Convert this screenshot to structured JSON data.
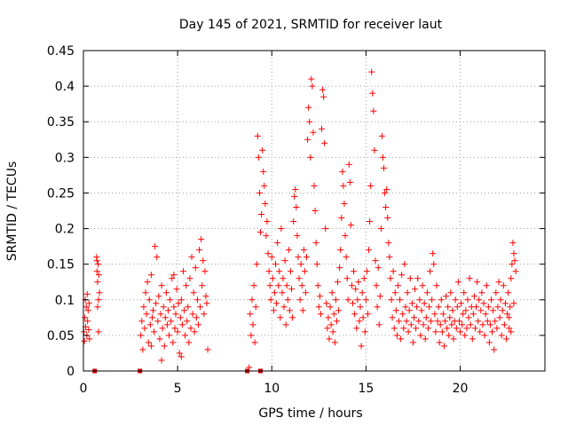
{
  "chart_data": {
    "type": "scatter",
    "title": "Day 145 of 2021, SRMTID for receiver laut",
    "xlabel": "GPS time / hours",
    "ylabel": "SRMTID / TECUs",
    "xlim": [
      0,
      24.5
    ],
    "ylim": [
      0,
      0.45
    ],
    "xticks": [
      0,
      5,
      10,
      15,
      20
    ],
    "yticks": [
      0,
      0.05,
      0.1,
      0.15,
      0.2,
      0.25,
      0.3,
      0.35,
      0.4,
      0.45
    ],
    "xtick_labels": [
      "0",
      "5",
      "10",
      "15",
      "20"
    ],
    "ytick_labels": [
      "0",
      "0.05",
      "0.1",
      "0.15",
      "0.2",
      "0.25",
      "0.3",
      "0.35",
      "0.4",
      "0.45"
    ],
    "grid": true,
    "marker": "+",
    "series_color": "#ff0000",
    "zero_markers_x": [
      0.6,
      3.0,
      8.7,
      9.4
    ],
    "data": [
      [
        0.02,
        0.055
      ],
      [
        0.05,
        0.042
      ],
      [
        0.08,
        0.075
      ],
      [
        0.1,
        0.1
      ],
      [
        0.12,
        0.062
      ],
      [
        0.15,
        0.09
      ],
      [
        0.18,
        0.05
      ],
      [
        0.2,
        0.108
      ],
      [
        0.22,
        0.07
      ],
      [
        0.25,
        0.085
      ],
      [
        0.28,
        0.058
      ],
      [
        0.3,
        0.095
      ],
      [
        0.32,
        0.045
      ],
      [
        0.7,
        0.16
      ],
      [
        0.72,
        0.14
      ],
      [
        0.75,
        0.125
      ],
      [
        0.78,
        0.15
      ],
      [
        0.8,
        0.1
      ],
      [
        0.82,
        0.135
      ],
      [
        0.85,
        0.11
      ],
      [
        0.75,
        0.09
      ],
      [
        0.8,
        0.055
      ],
      [
        0.72,
        0.155
      ],
      [
        3.05,
        0.05
      ],
      [
        3.1,
        0.07
      ],
      [
        3.15,
        0.03
      ],
      [
        3.2,
        0.09
      ],
      [
        3.25,
        0.06
      ],
      [
        3.3,
        0.11
      ],
      [
        3.35,
        0.08
      ],
      [
        3.4,
        0.125
      ],
      [
        3.45,
        0.04
      ],
      [
        3.5,
        0.1
      ],
      [
        3.55,
        0.065
      ],
      [
        3.6,
        0.135
      ],
      [
        3.65,
        0.075
      ],
      [
        3.7,
        0.085
      ],
      [
        3.75,
        0.055
      ],
      [
        3.8,
        0.175
      ],
      [
        3.85,
        0.095
      ],
      [
        3.9,
        0.16
      ],
      [
        3.95,
        0.07
      ],
      [
        4.0,
        0.105
      ],
      [
        4.05,
        0.045
      ],
      [
        4.1,
        0.08
      ],
      [
        4.15,
        0.12
      ],
      [
        4.2,
        0.06
      ],
      [
        4.25,
        0.09
      ],
      [
        4.3,
        0.035
      ],
      [
        4.35,
        0.075
      ],
      [
        4.4,
        0.11
      ],
      [
        4.45,
        0.065
      ],
      [
        4.5,
        0.085
      ],
      [
        4.55,
        0.05
      ],
      [
        4.6,
        0.1
      ],
      [
        4.65,
        0.07
      ],
      [
        4.7,
        0.13
      ],
      [
        4.75,
        0.04
      ],
      [
        4.8,
        0.09
      ],
      [
        4.85,
        0.06
      ],
      [
        4.9,
        0.08
      ],
      [
        4.95,
        0.115
      ],
      [
        5.0,
        0.055
      ],
      [
        5.05,
        0.095
      ],
      [
        5.1,
        0.025
      ],
      [
        5.15,
        0.075
      ],
      [
        5.2,
        0.1
      ],
      [
        5.25,
        0.065
      ],
      [
        5.3,
        0.14
      ],
      [
        5.35,
        0.085
      ],
      [
        5.4,
        0.05
      ],
      [
        5.45,
        0.12
      ],
      [
        5.5,
        0.07
      ],
      [
        5.55,
        0.09
      ],
      [
        5.6,
        0.04
      ],
      [
        5.65,
        0.13
      ],
      [
        5.7,
        0.06
      ],
      [
        5.75,
        0.16
      ],
      [
        5.8,
        0.08
      ],
      [
        5.85,
        0.11
      ],
      [
        5.9,
        0.055
      ],
      [
        5.95,
        0.145
      ],
      [
        6.0,
        0.075
      ],
      [
        6.05,
        0.1
      ],
      [
        6.1,
        0.065
      ],
      [
        6.15,
        0.17
      ],
      [
        6.2,
        0.09
      ],
      [
        6.25,
        0.185
      ],
      [
        6.3,
        0.12
      ],
      [
        6.35,
        0.155
      ],
      [
        6.4,
        0.08
      ],
      [
        6.45,
        0.14
      ],
      [
        6.5,
        0.105
      ],
      [
        6.55,
        0.095
      ],
      [
        6.6,
        0.03
      ],
      [
        4.15,
        0.015
      ],
      [
        3.6,
        0.035
      ],
      [
        5.2,
        0.02
      ],
      [
        4.8,
        0.135
      ],
      [
        8.8,
        0.005
      ],
      [
        8.85,
        0.08
      ],
      [
        8.9,
        0.05
      ],
      [
        8.95,
        0.1
      ],
      [
        9.0,
        0.065
      ],
      [
        9.05,
        0.12
      ],
      [
        9.1,
        0.04
      ],
      [
        9.15,
        0.09
      ],
      [
        9.2,
        0.15
      ],
      [
        9.25,
        0.33
      ],
      [
        9.3,
        0.3
      ],
      [
        9.35,
        0.25
      ],
      [
        9.4,
        0.195
      ],
      [
        9.45,
        0.22
      ],
      [
        9.5,
        0.31
      ],
      [
        9.55,
        0.28
      ],
      [
        9.6,
        0.26
      ],
      [
        9.65,
        0.235
      ],
      [
        9.7,
        0.19
      ],
      [
        9.75,
        0.21
      ],
      [
        9.8,
        0.165
      ],
      [
        9.85,
        0.14
      ],
      [
        9.9,
        0.12
      ],
      [
        9.95,
        0.1
      ],
      [
        10.0,
        0.16
      ],
      [
        10.05,
        0.13
      ],
      [
        10.1,
        0.085
      ],
      [
        10.15,
        0.11
      ],
      [
        10.2,
        0.15
      ],
      [
        10.25,
        0.095
      ],
      [
        10.3,
        0.18
      ],
      [
        10.35,
        0.12
      ],
      [
        10.4,
        0.14
      ],
      [
        10.45,
        0.075
      ],
      [
        10.5,
        0.2
      ],
      [
        10.55,
        0.11
      ],
      [
        10.6,
        0.13
      ],
      [
        10.65,
        0.09
      ],
      [
        10.7,
        0.155
      ],
      [
        10.75,
        0.065
      ],
      [
        10.8,
        0.12
      ],
      [
        10.85,
        0.1
      ],
      [
        10.9,
        0.17
      ],
      [
        10.95,
        0.085
      ],
      [
        11.0,
        0.14
      ],
      [
        11.05,
        0.115
      ],
      [
        11.1,
        0.075
      ],
      [
        11.15,
        0.21
      ],
      [
        11.2,
        0.245
      ],
      [
        11.25,
        0.255
      ],
      [
        11.3,
        0.23
      ],
      [
        11.35,
        0.19
      ],
      [
        11.4,
        0.16
      ],
      [
        11.45,
        0.13
      ],
      [
        11.5,
        0.1
      ],
      [
        11.55,
        0.15
      ],
      [
        11.6,
        0.12
      ],
      [
        11.65,
        0.085
      ],
      [
        11.7,
        0.17
      ],
      [
        11.75,
        0.14
      ],
      [
        11.8,
        0.11
      ],
      [
        11.85,
        0.16
      ],
      [
        11.9,
        0.325
      ],
      [
        11.95,
        0.37
      ],
      [
        12.0,
        0.35
      ],
      [
        12.05,
        0.3
      ],
      [
        12.1,
        0.41
      ],
      [
        12.15,
        0.4
      ],
      [
        12.2,
        0.335
      ],
      [
        12.25,
        0.26
      ],
      [
        12.3,
        0.225
      ],
      [
        12.35,
        0.18
      ],
      [
        12.4,
        0.15
      ],
      [
        12.45,
        0.12
      ],
      [
        12.5,
        0.09
      ],
      [
        12.55,
        0.105
      ],
      [
        12.6,
        0.08
      ],
      [
        12.65,
        0.34
      ],
      [
        12.7,
        0.395
      ],
      [
        12.75,
        0.385
      ],
      [
        12.8,
        0.32
      ],
      [
        12.85,
        0.2
      ],
      [
        12.9,
        0.095
      ],
      [
        12.95,
        0.06
      ],
      [
        13.0,
        0.075
      ],
      [
        13.05,
        0.045
      ],
      [
        13.1,
        0.09
      ],
      [
        13.15,
        0.065
      ],
      [
        13.2,
        0.11
      ],
      [
        13.25,
        0.055
      ],
      [
        13.3,
        0.08
      ],
      [
        13.35,
        0.04
      ],
      [
        13.4,
        0.1
      ],
      [
        13.45,
        0.07
      ],
      [
        13.5,
        0.125
      ],
      [
        13.55,
        0.085
      ],
      [
        13.6,
        0.145
      ],
      [
        13.65,
        0.17
      ],
      [
        13.7,
        0.215
      ],
      [
        13.75,
        0.28
      ],
      [
        13.8,
        0.26
      ],
      [
        13.85,
        0.235
      ],
      [
        13.9,
        0.19
      ],
      [
        13.95,
        0.16
      ],
      [
        14.0,
        0.13
      ],
      [
        14.05,
        0.1
      ],
      [
        14.1,
        0.29
      ],
      [
        14.15,
        0.265
      ],
      [
        14.2,
        0.205
      ],
      [
        14.25,
        0.12
      ],
      [
        14.3,
        0.095
      ],
      [
        14.35,
        0.14
      ],
      [
        14.4,
        0.08
      ],
      [
        14.45,
        0.115
      ],
      [
        14.5,
        0.06
      ],
      [
        14.55,
        0.1
      ],
      [
        14.6,
        0.125
      ],
      [
        14.65,
        0.07
      ],
      [
        14.7,
        0.09
      ],
      [
        14.75,
        0.035
      ],
      [
        14.8,
        0.11
      ],
      [
        14.85,
        0.075
      ],
      [
        14.9,
        0.13
      ],
      [
        14.95,
        0.055
      ],
      [
        15.0,
        0.1
      ],
      [
        15.05,
        0.14
      ],
      [
        15.1,
        0.08
      ],
      [
        15.15,
        0.17
      ],
      [
        15.2,
        0.21
      ],
      [
        15.25,
        0.26
      ],
      [
        15.3,
        0.42
      ],
      [
        15.35,
        0.39
      ],
      [
        15.4,
        0.365
      ],
      [
        15.45,
        0.31
      ],
      [
        15.5,
        0.155
      ],
      [
        15.55,
        0.12
      ],
      [
        15.6,
        0.09
      ],
      [
        15.65,
        0.145
      ],
      [
        15.7,
        0.065
      ],
      [
        15.75,
        0.105
      ],
      [
        15.8,
        0.2
      ],
      [
        15.85,
        0.33
      ],
      [
        15.9,
        0.3
      ],
      [
        15.95,
        0.285
      ],
      [
        16.0,
        0.25
      ],
      [
        16.05,
        0.23
      ],
      [
        16.1,
        0.255
      ],
      [
        16.15,
        0.215
      ],
      [
        16.2,
        0.18
      ],
      [
        16.25,
        0.16
      ],
      [
        16.3,
        0.13
      ],
      [
        16.35,
        0.1
      ],
      [
        16.4,
        0.075
      ],
      [
        16.45,
        0.14
      ],
      [
        16.5,
        0.06
      ],
      [
        16.55,
        0.11
      ],
      [
        16.6,
        0.085
      ],
      [
        16.65,
        0.05
      ],
      [
        16.7,
        0.12
      ],
      [
        16.75,
        0.07
      ],
      [
        16.8,
        0.1
      ],
      [
        16.85,
        0.045
      ],
      [
        16.9,
        0.135
      ],
      [
        16.95,
        0.08
      ],
      [
        17.0,
        0.06
      ],
      [
        17.05,
        0.15
      ],
      [
        17.1,
        0.09
      ],
      [
        17.15,
        0.07
      ],
      [
        17.2,
        0.11
      ],
      [
        17.25,
        0.055
      ],
      [
        17.3,
        0.085
      ],
      [
        17.35,
        0.13
      ],
      [
        17.4,
        0.065
      ],
      [
        17.45,
        0.095
      ],
      [
        17.5,
        0.04
      ],
      [
        17.55,
        0.075
      ],
      [
        17.6,
        0.115
      ],
      [
        17.65,
        0.06
      ],
      [
        17.7,
        0.09
      ],
      [
        17.75,
        0.13
      ],
      [
        17.8,
        0.07
      ],
      [
        17.85,
        0.1
      ],
      [
        17.9,
        0.05
      ],
      [
        17.95,
        0.085
      ],
      [
        18.0,
        0.12
      ],
      [
        18.05,
        0.065
      ],
      [
        18.1,
        0.095
      ],
      [
        18.15,
        0.045
      ],
      [
        18.2,
        0.075
      ],
      [
        18.25,
        0.11
      ],
      [
        18.3,
        0.06
      ],
      [
        18.35,
        0.09
      ],
      [
        18.4,
        0.14
      ],
      [
        18.45,
        0.07
      ],
      [
        18.5,
        0.1
      ],
      [
        18.55,
        0.165
      ],
      [
        18.6,
        0.15
      ],
      [
        18.65,
        0.08
      ],
      [
        18.7,
        0.055
      ],
      [
        18.75,
        0.12
      ],
      [
        18.8,
        0.07
      ],
      [
        18.85,
        0.09
      ],
      [
        18.9,
        0.04
      ],
      [
        18.95,
        0.065
      ],
      [
        19.0,
        0.1
      ],
      [
        19.05,
        0.055
      ],
      [
        19.1,
        0.08
      ],
      [
        19.15,
        0.035
      ],
      [
        19.2,
        0.07
      ],
      [
        19.25,
        0.105
      ],
      [
        19.3,
        0.06
      ],
      [
        19.35,
        0.09
      ],
      [
        19.4,
        0.05
      ],
      [
        19.45,
        0.075
      ],
      [
        19.5,
        0.11
      ],
      [
        19.55,
        0.065
      ],
      [
        19.6,
        0.085
      ],
      [
        19.65,
        0.045
      ],
      [
        19.7,
        0.07
      ],
      [
        19.75,
        0.1
      ],
      [
        19.8,
        0.06
      ],
      [
        19.85,
        0.09
      ],
      [
        19.9,
        0.125
      ],
      [
        19.95,
        0.07
      ],
      [
        20.0,
        0.055
      ],
      [
        20.05,
        0.095
      ],
      [
        20.1,
        0.065
      ],
      [
        20.15,
        0.08
      ],
      [
        20.2,
        0.11
      ],
      [
        20.25,
        0.05
      ],
      [
        20.3,
        0.085
      ],
      [
        20.35,
        0.06
      ],
      [
        20.4,
        0.1
      ],
      [
        20.45,
        0.075
      ],
      [
        20.5,
        0.13
      ],
      [
        20.55,
        0.065
      ],
      [
        20.6,
        0.09
      ],
      [
        20.65,
        0.045
      ],
      [
        20.7,
        0.08
      ],
      [
        20.75,
        0.105
      ],
      [
        20.8,
        0.06
      ],
      [
        20.85,
        0.09
      ],
      [
        20.9,
        0.125
      ],
      [
        20.95,
        0.07
      ],
      [
        21.0,
        0.1
      ],
      [
        21.05,
        0.055
      ],
      [
        21.1,
        0.085
      ],
      [
        21.15,
        0.11
      ],
      [
        21.2,
        0.065
      ],
      [
        21.25,
        0.095
      ],
      [
        21.3,
        0.05
      ],
      [
        21.35,
        0.08
      ],
      [
        21.4,
        0.12
      ],
      [
        21.45,
        0.07
      ],
      [
        21.5,
        0.09
      ],
      [
        21.55,
        0.04
      ],
      [
        21.6,
        0.065
      ],
      [
        21.65,
        0.1
      ],
      [
        21.7,
        0.055
      ],
      [
        21.75,
        0.085
      ],
      [
        21.8,
        0.03
      ],
      [
        21.85,
        0.07
      ],
      [
        21.9,
        0.11
      ],
      [
        21.95,
        0.06
      ],
      [
        22.0,
        0.09
      ],
      [
        22.05,
        0.125
      ],
      [
        22.1,
        0.075
      ],
      [
        22.15,
        0.1
      ],
      [
        22.2,
        0.05
      ],
      [
        22.25,
        0.085
      ],
      [
        22.3,
        0.12
      ],
      [
        22.35,
        0.065
      ],
      [
        22.4,
        0.095
      ],
      [
        22.45,
        0.045
      ],
      [
        22.5,
        0.08
      ],
      [
        22.55,
        0.11
      ],
      [
        22.6,
        0.06
      ],
      [
        22.65,
        0.09
      ],
      [
        22.7,
        0.13
      ],
      [
        22.75,
        0.15
      ],
      [
        22.8,
        0.18
      ],
      [
        22.85,
        0.165
      ],
      [
        22.9,
        0.155
      ],
      [
        22.95,
        0.14
      ],
      [
        22.6,
        0.075
      ],
      [
        22.7,
        0.055
      ],
      [
        22.85,
        0.095
      ]
    ]
  }
}
